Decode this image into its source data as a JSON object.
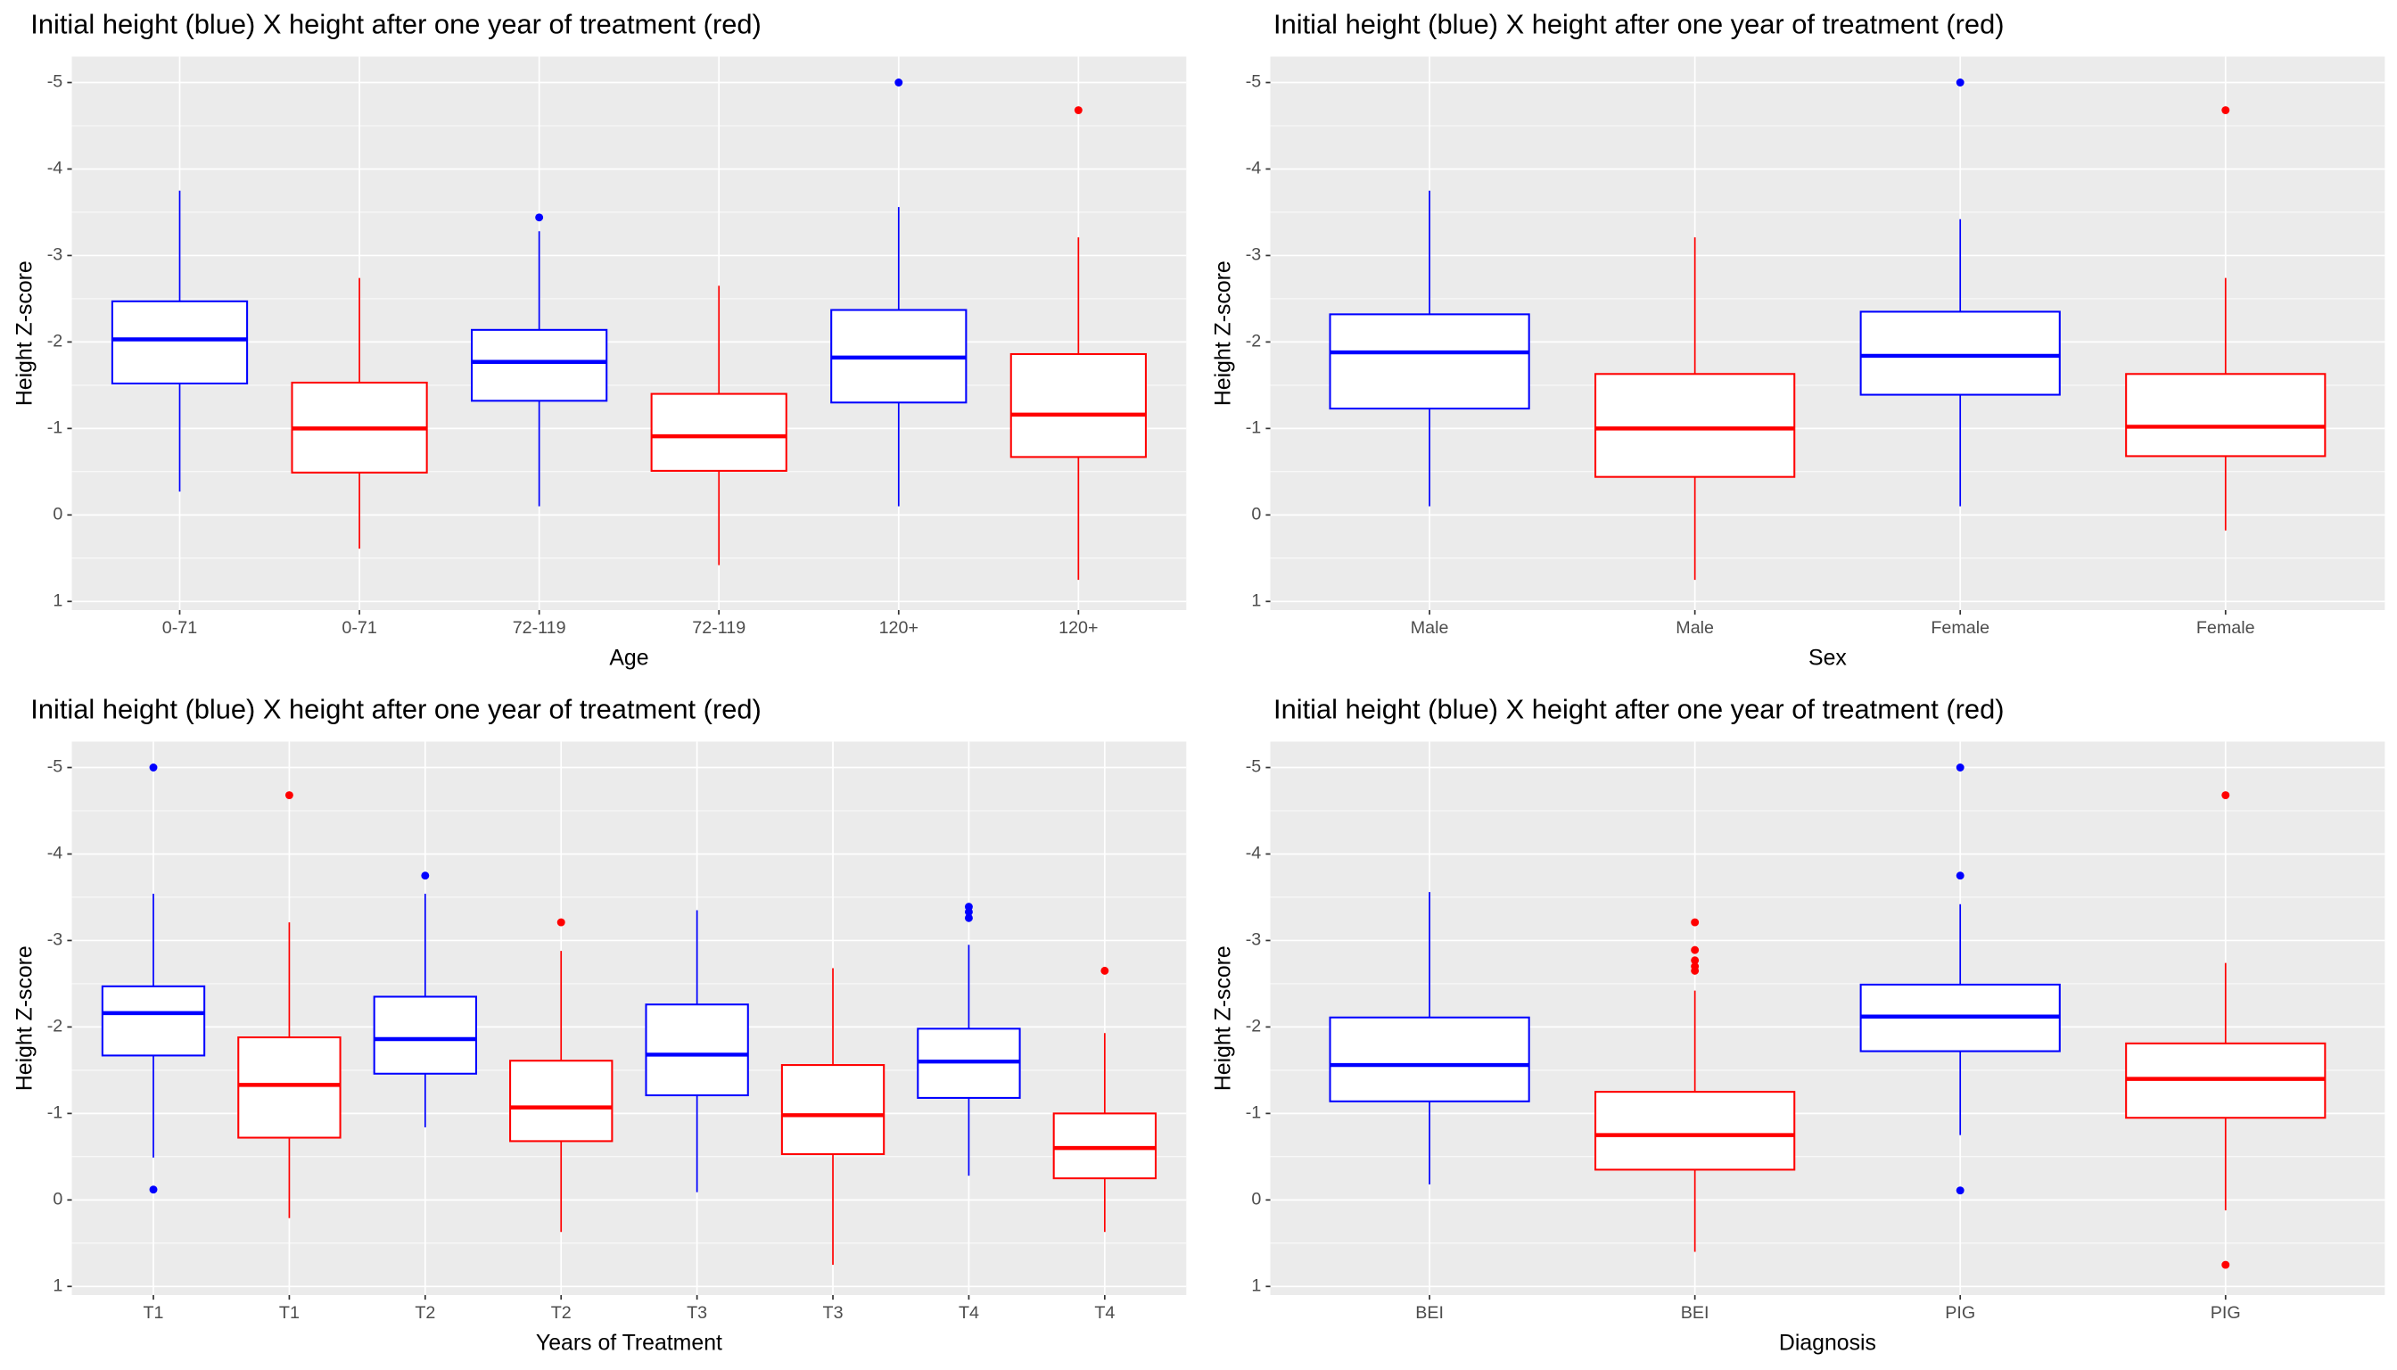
{
  "chart_data": [
    {
      "type": "box",
      "title": "Initial height (blue) X height after one year of treatment (red)",
      "x_label": "Age",
      "y_label": "Height Z-score",
      "ylim": [
        1.1,
        -5.3
      ],
      "yticks": [
        -5,
        -4,
        -3,
        -2,
        -1,
        0,
        1
      ],
      "grid": true,
      "categories": [
        "0-71",
        "0-71",
        "72-119",
        "72-119",
        "120+",
        "120+"
      ],
      "boxes": [
        {
          "color": "#0000ff",
          "min": -3.75,
          "q1": -2.47,
          "median": -2.03,
          "q3": -1.52,
          "max": -0.27,
          "outliers": []
        },
        {
          "color": "#ff0000",
          "min": -2.74,
          "q1": -1.53,
          "median": -1.0,
          "q3": -0.49,
          "max": 0.39,
          "outliers": []
        },
        {
          "color": "#0000ff",
          "min": -3.28,
          "q1": -2.14,
          "median": -1.77,
          "q3": -1.32,
          "max": -0.1,
          "outliers": [
            -3.44
          ]
        },
        {
          "color": "#ff0000",
          "min": -2.65,
          "q1": -1.4,
          "median": -0.91,
          "q3": -0.51,
          "max": 0.58,
          "outliers": []
        },
        {
          "color": "#0000ff",
          "min": -3.56,
          "q1": -2.37,
          "median": -1.82,
          "q3": -1.3,
          "max": -0.1,
          "outliers": [
            -5
          ]
        },
        {
          "color": "#ff0000",
          "min": -3.21,
          "q1": -1.86,
          "median": -1.16,
          "q3": -0.67,
          "max": 0.75,
          "outliers": [
            -4.68
          ]
        }
      ]
    },
    {
      "type": "box",
      "title": "Initial height (blue) X height after one year of treatment (red)",
      "x_label": "Sex",
      "y_label": "Height Z-score",
      "ylim": [
        1.1,
        -5.3
      ],
      "yticks": [
        -5,
        -4,
        -3,
        -2,
        -1,
        0,
        1
      ],
      "grid": true,
      "categories": [
        "Male",
        "Male",
        "Female",
        "Female"
      ],
      "boxes": [
        {
          "color": "#0000ff",
          "min": -3.75,
          "q1": -2.32,
          "median": -1.88,
          "q3": -1.23,
          "max": -0.1,
          "outliers": []
        },
        {
          "color": "#ff0000",
          "min": -3.21,
          "q1": -1.63,
          "median": -1.0,
          "q3": -0.44,
          "max": 0.75,
          "outliers": []
        },
        {
          "color": "#0000ff",
          "min": -3.42,
          "q1": -2.35,
          "median": -1.84,
          "q3": -1.39,
          "max": -0.1,
          "outliers": [
            -5
          ]
        },
        {
          "color": "#ff0000",
          "min": -2.74,
          "q1": -1.63,
          "median": -1.02,
          "q3": -0.68,
          "max": 0.18,
          "outliers": [
            -4.68
          ]
        }
      ]
    },
    {
      "type": "box",
      "title": "Initial height (blue) X height after one year of treatment (red)",
      "x_label": "Years of Treatment",
      "y_label": "Height Z-score",
      "ylim": [
        1.1,
        -5.3
      ],
      "yticks": [
        -5,
        -4,
        -3,
        -2,
        -1,
        0,
        1
      ],
      "grid": true,
      "categories": [
        "T1",
        "T1",
        "T2",
        "T2",
        "T3",
        "T3",
        "T4",
        "T4"
      ],
      "boxes": [
        {
          "color": "#0000ff",
          "min": -3.54,
          "q1": -2.47,
          "median": -2.16,
          "q3": -1.67,
          "max": -0.49,
          "outliers": [
            -5,
            -0.12
          ]
        },
        {
          "color": "#ff0000",
          "min": -3.21,
          "q1": -1.88,
          "median": -1.33,
          "q3": -0.72,
          "max": 0.21,
          "outliers": [
            -4.68
          ]
        },
        {
          "color": "#0000ff",
          "min": -3.54,
          "q1": -2.35,
          "median": -1.86,
          "q3": -1.46,
          "max": -0.84,
          "outliers": [
            -3.75
          ]
        },
        {
          "color": "#ff0000",
          "min": -2.88,
          "q1": -1.61,
          "median": -1.07,
          "q3": -0.68,
          "max": 0.37,
          "outliers": [
            -3.21
          ]
        },
        {
          "color": "#0000ff",
          "min": -3.35,
          "q1": -2.26,
          "median": -1.68,
          "q3": -1.21,
          "max": -0.09,
          "outliers": []
        },
        {
          "color": "#ff0000",
          "min": -2.68,
          "q1": -1.56,
          "median": -0.98,
          "q3": -0.53,
          "max": 0.75,
          "outliers": []
        },
        {
          "color": "#0000ff",
          "min": -2.95,
          "q1": -1.98,
          "median": -1.6,
          "q3": -1.18,
          "max": -0.28,
          "outliers": [
            -3.39,
            -3.33,
            -3.26
          ]
        },
        {
          "color": "#ff0000",
          "min": -1.93,
          "q1": -1.0,
          "median": -0.6,
          "q3": -0.25,
          "max": 0.37,
          "outliers": [
            -2.65
          ]
        }
      ]
    },
    {
      "type": "box",
      "title": "Initial height (blue) X height after one year of treatment (red)",
      "x_label": "Diagnosis",
      "y_label": "Height Z-score",
      "ylim": [
        1.1,
        -5.3
      ],
      "yticks": [
        -5,
        -4,
        -3,
        -2,
        -1,
        0,
        1
      ],
      "grid": true,
      "categories": [
        "BEI",
        "BEI",
        "PIG",
        "PIG"
      ],
      "boxes": [
        {
          "color": "#0000ff",
          "min": -3.56,
          "q1": -2.11,
          "median": -1.56,
          "q3": -1.14,
          "max": -0.18,
          "outliers": []
        },
        {
          "color": "#ff0000",
          "min": -2.42,
          "q1": -1.25,
          "median": -0.75,
          "q3": -0.35,
          "max": 0.6,
          "outliers": [
            -3.21,
            -2.89,
            -2.77,
            -2.7,
            -2.65
          ]
        },
        {
          "color": "#0000ff",
          "min": -3.42,
          "q1": -2.49,
          "median": -2.12,
          "q3": -1.72,
          "max": -0.75,
          "outliers": [
            -5,
            -3.75,
            -0.11
          ]
        },
        {
          "color": "#ff0000",
          "min": -2.74,
          "q1": -1.81,
          "median": -1.4,
          "q3": -0.95,
          "max": 0.12,
          "outliers": [
            -4.68,
            0.75
          ]
        }
      ]
    }
  ]
}
